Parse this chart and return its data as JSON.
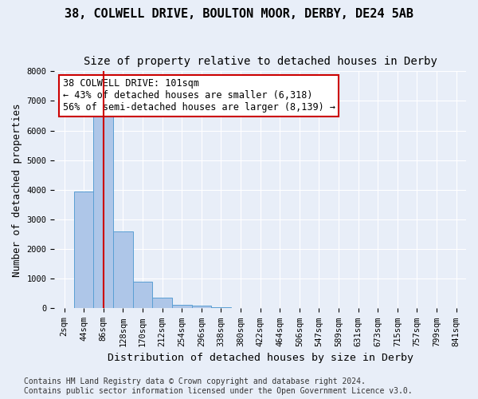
{
  "title": "38, COLWELL DRIVE, BOULTON MOOR, DERBY, DE24 5AB",
  "subtitle": "Size of property relative to detached houses in Derby",
  "xlabel": "Distribution of detached houses by size in Derby",
  "ylabel": "Number of detached properties",
  "bin_labels": [
    "2sqm",
    "44sqm",
    "86sqm",
    "128sqm",
    "170sqm",
    "212sqm",
    "254sqm",
    "296sqm",
    "338sqm",
    "380sqm",
    "422sqm",
    "464sqm",
    "506sqm",
    "547sqm",
    "589sqm",
    "631sqm",
    "673sqm",
    "715sqm",
    "757sqm",
    "799sqm",
    "841sqm"
  ],
  "bar_values": [
    10,
    3950,
    6500,
    2600,
    900,
    370,
    110,
    80,
    40,
    0,
    0,
    0,
    0,
    0,
    0,
    0,
    0,
    0,
    0,
    0,
    0
  ],
  "bar_color": "#aec6e8",
  "bar_edge_color": "#5a9fd4",
  "vline_x": 2,
  "vline_color": "#cc0000",
  "annotation_text": "38 COLWELL DRIVE: 101sqm\n← 43% of detached houses are smaller (6,318)\n56% of semi-detached houses are larger (8,139) →",
  "annotation_box_color": "#ffffff",
  "annotation_box_edge_color": "#cc0000",
  "ylim": [
    0,
    8000
  ],
  "yticks": [
    0,
    1000,
    2000,
    3000,
    4000,
    5000,
    6000,
    7000,
    8000
  ],
  "footer_text": "Contains HM Land Registry data © Crown copyright and database right 2024.\nContains public sector information licensed under the Open Government Licence v3.0.",
  "bg_color": "#e8eef8",
  "plot_bg_color": "#e8eef8",
  "grid_color": "#ffffff",
  "title_fontsize": 11,
  "subtitle_fontsize": 10,
  "axis_label_fontsize": 9,
  "tick_fontsize": 7.5,
  "footer_fontsize": 7
}
